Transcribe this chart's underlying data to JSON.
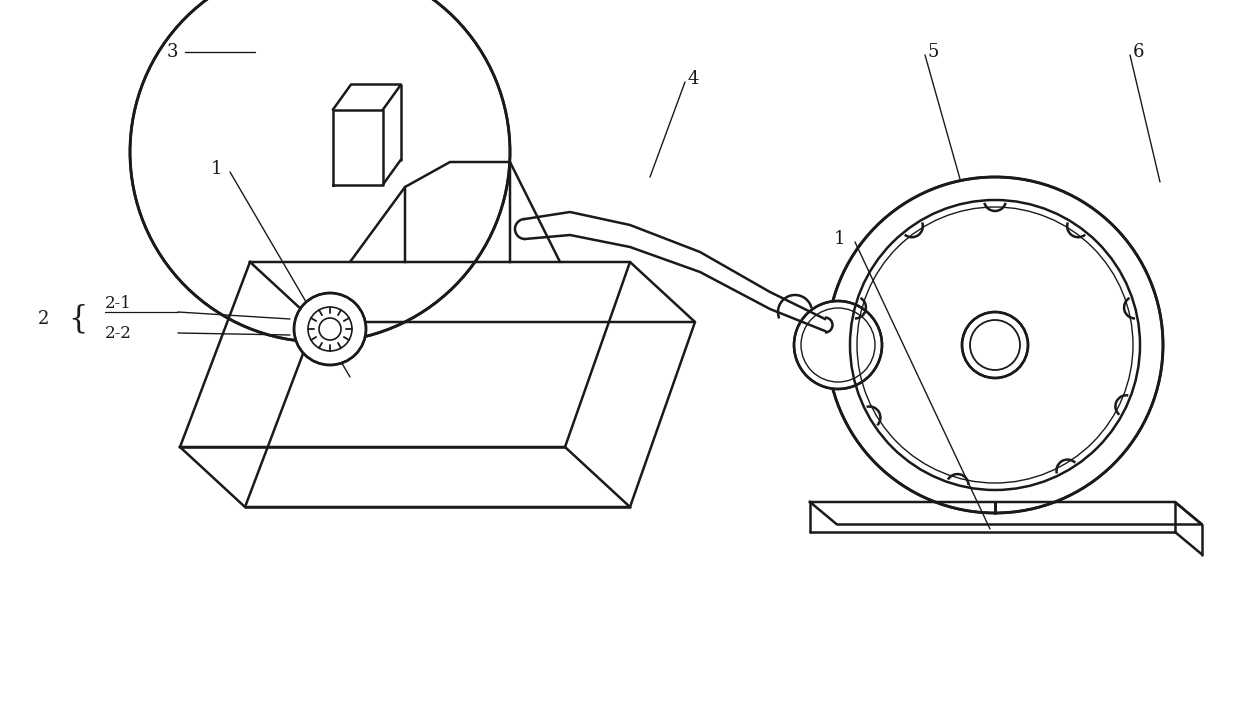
{
  "bg_color": "#ffffff",
  "line_color": "#1a1a1a",
  "line_width": 1.8,
  "thin_line": 1.0,
  "fig_width": 12.4,
  "fig_height": 7.07
}
